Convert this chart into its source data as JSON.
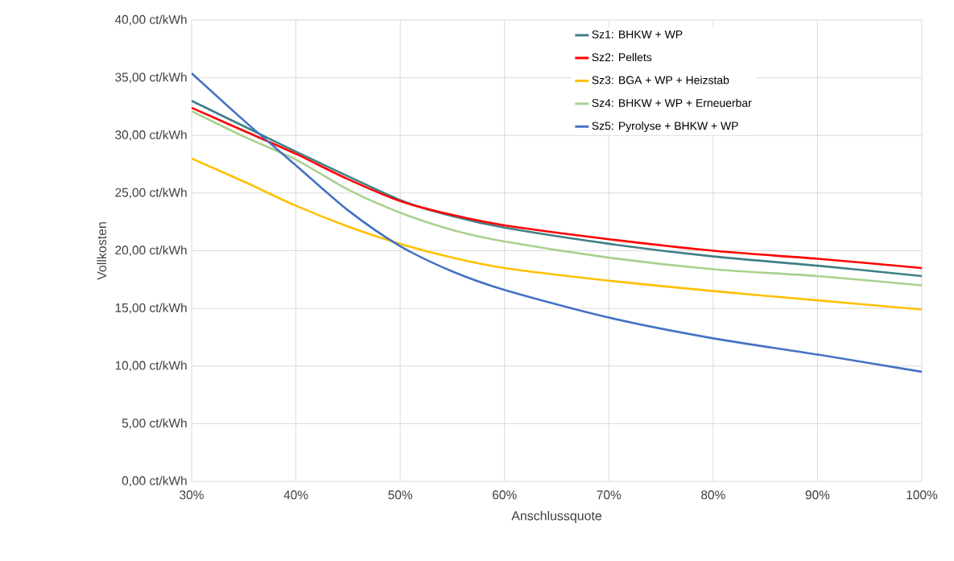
{
  "chart_data": {
    "type": "line",
    "xlabel": "Anschlussquote",
    "ylabel": "Vollkosten",
    "x": [
      30,
      35,
      40,
      45,
      50,
      55,
      60,
      70,
      80,
      90,
      100
    ],
    "series": [
      {
        "name": "Sz1: BHKW + WP",
        "color": "#3f7f86",
        "values": [
          33.0,
          30.8,
          28.6,
          null,
          24.4,
          23.0,
          22.0,
          20.6,
          19.5,
          18.7,
          17.8
        ]
      },
      {
        "name": "Sz2: Pellets",
        "color": "#ff0000",
        "values": [
          32.4,
          30.4,
          28.4,
          26.2,
          24.3,
          23.1,
          22.2,
          21.0,
          20.0,
          19.3,
          18.5
        ]
      },
      {
        "name": "Sz3: BGA + WP + Heizstab",
        "color": "#ffc000",
        "values": [
          28.0,
          26.0,
          23.9,
          22.1,
          20.6,
          19.4,
          18.5,
          17.4,
          16.5,
          15.7,
          14.9
        ]
      },
      {
        "name": "Sz4: BHKW + WP + Erneuerbar",
        "color": "#a9d18e",
        "values": [
          32.1,
          29.9,
          27.9,
          25.3,
          23.3,
          21.8,
          20.8,
          19.4,
          18.4,
          17.8,
          17.0
        ]
      },
      {
        "name": "Sz5: Pyrolyse + BHKW + WP",
        "color": "#4472c4",
        "values": [
          35.4,
          31.3,
          27.4,
          23.5,
          20.4,
          18.2,
          16.6,
          14.2,
          12.4,
          11.0,
          9.5
        ]
      }
    ],
    "xlim": [
      30,
      100
    ],
    "xticks": [
      {
        "value": 30,
        "label": "30%"
      },
      {
        "value": 40,
        "label": "40%"
      },
      {
        "value": 50,
        "label": "50%"
      },
      {
        "value": 60,
        "label": "60%"
      },
      {
        "value": 70,
        "label": "70%"
      },
      {
        "value": 80,
        "label": "80%"
      },
      {
        "value": 90,
        "label": "90%"
      },
      {
        "value": 100,
        "label": "100%"
      }
    ],
    "ylim": [
      0,
      40
    ],
    "yticks": [
      {
        "value": 0,
        "label": "0,00 ct/kWh"
      },
      {
        "value": 5,
        "label": "5,00 ct/kWh"
      },
      {
        "value": 10,
        "label": "10,00 ct/kWh"
      },
      {
        "value": 15,
        "label": "15,00 ct/kWh"
      },
      {
        "value": 20,
        "label": "20,00 ct/kWh"
      },
      {
        "value": 25,
        "label": "25,00 ct/kWh"
      },
      {
        "value": 30,
        "label": "30,00 ct/kWh"
      },
      {
        "value": 35,
        "label": "35,00 ct/kWh"
      },
      {
        "value": 40,
        "label": "40,00 ct/kWh"
      }
    ],
    "grid": true,
    "legend": "top right",
    "marker": "none",
    "line_style": "solid"
  }
}
